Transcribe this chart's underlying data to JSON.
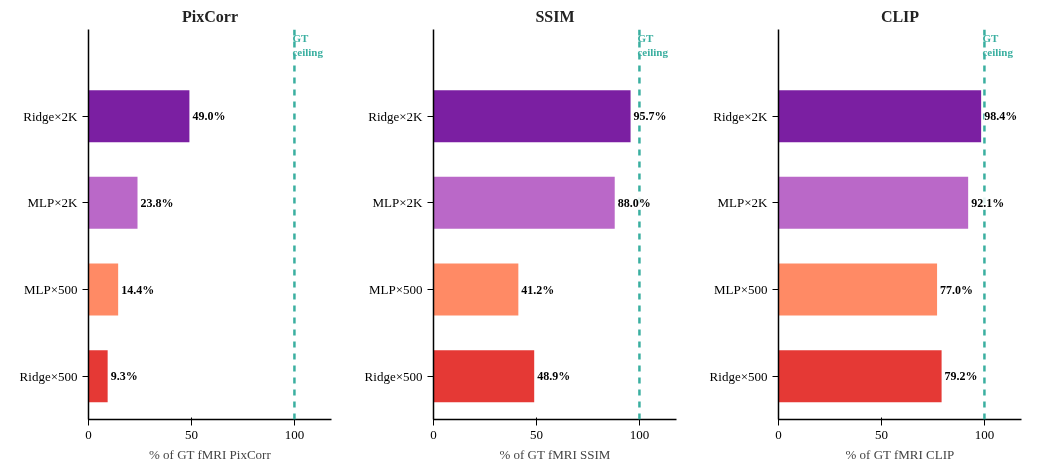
{
  "chart_data": [
    {
      "type": "bar",
      "orientation": "horizontal",
      "title": "PixCorr",
      "xlabel": "% of GT fMRI PixCorr",
      "categories": [
        "Ridge×2K",
        "MLP×2K",
        "MLP×500",
        "Ridge×500"
      ],
      "values": [
        49.0,
        23.8,
        14.4,
        9.3
      ],
      "colors": [
        "#7b1fa2",
        "#ba68c8",
        "#ff8a65",
        "#e53935"
      ],
      "value_labels": [
        "49.0%",
        "23.8%",
        "14.4%",
        "9.3%"
      ],
      "xlim": [
        0,
        118
      ],
      "xticks": [
        0,
        50,
        100
      ],
      "grid": false,
      "ref_lines": [
        {
          "axis": "x",
          "value": 100,
          "label": "GT\nceiling",
          "color": "#3aafa0",
          "line_style": "dashed"
        }
      ]
    },
    {
      "type": "bar",
      "orientation": "horizontal",
      "title": "SSIM",
      "xlabel": "% of GT fMRI SSIM",
      "categories": [
        "Ridge×2K",
        "MLP×2K",
        "MLP×500",
        "Ridge×500"
      ],
      "values": [
        95.7,
        88.0,
        41.2,
        48.9
      ],
      "colors": [
        "#7b1fa2",
        "#ba68c8",
        "#ff8a65",
        "#e53935"
      ],
      "value_labels": [
        "95.7%",
        "88.0%",
        "41.2%",
        "48.9%"
      ],
      "xlim": [
        0,
        118
      ],
      "xticks": [
        0,
        50,
        100
      ],
      "grid": false,
      "ref_lines": [
        {
          "axis": "x",
          "value": 100,
          "label": "GT\nceiling",
          "color": "#3aafa0",
          "line_style": "dashed"
        }
      ]
    },
    {
      "type": "bar",
      "orientation": "horizontal",
      "title": "CLIP",
      "xlabel": "% of GT fMRI CLIP",
      "categories": [
        "Ridge×2K",
        "MLP×2K",
        "MLP×500",
        "Ridge×500"
      ],
      "values": [
        98.4,
        92.1,
        77.0,
        79.2
      ],
      "colors": [
        "#7b1fa2",
        "#ba68c8",
        "#ff8a65",
        "#e53935"
      ],
      "value_labels": [
        "98.4%",
        "92.1%",
        "77.0%",
        "79.2%"
      ],
      "xlim": [
        0,
        118
      ],
      "xticks": [
        0,
        50,
        100
      ],
      "grid": false,
      "ref_lines": [
        {
          "axis": "x",
          "value": 100,
          "label": "GT\nceiling",
          "color": "#3aafa0",
          "line_style": "dashed"
        }
      ]
    }
  ]
}
